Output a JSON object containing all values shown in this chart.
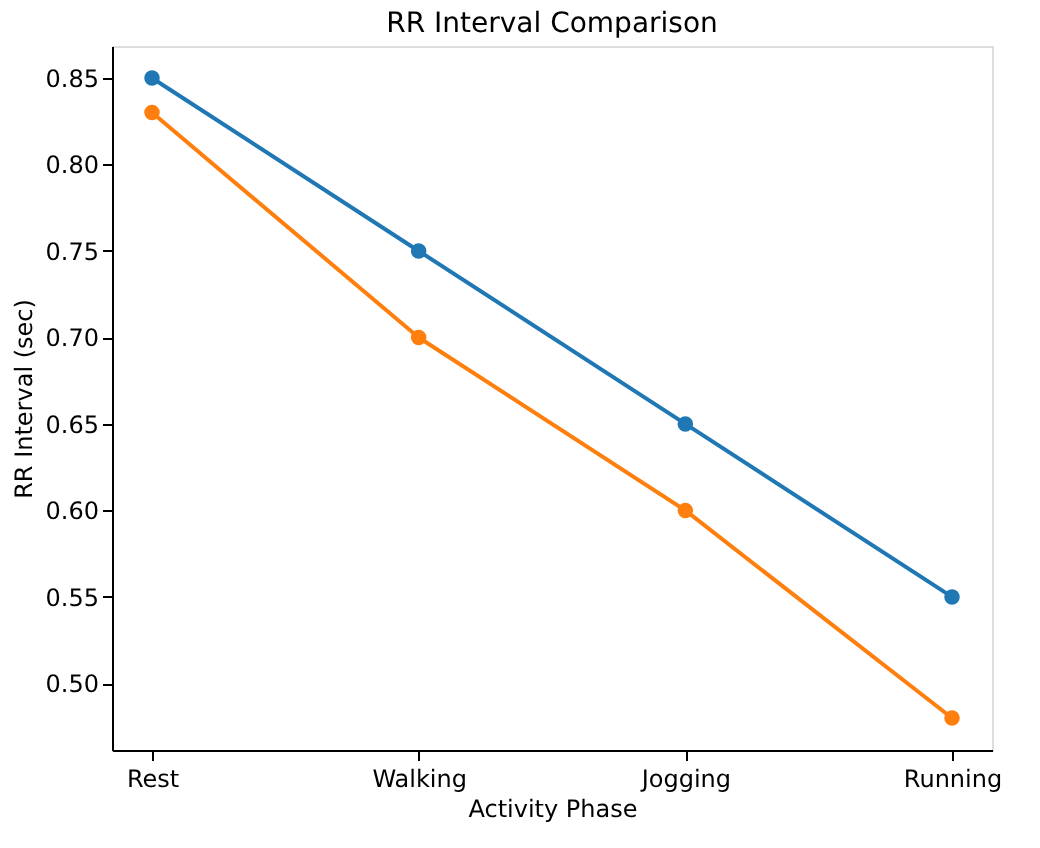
{
  "chart_data": {
    "type": "line",
    "title": "RR Interval Comparison",
    "xlabel": "Activity Phase",
    "ylabel": "RR Interval (sec)",
    "categories": [
      "Rest",
      "Walking",
      "Jogging",
      "Running"
    ],
    "series": [
      {
        "color": "#1f77b4",
        "values": [
          0.85,
          0.75,
          0.65,
          0.55
        ]
      },
      {
        "color": "#ff7f0e",
        "values": [
          0.83,
          0.7,
          0.6,
          0.48
        ]
      }
    ],
    "ylim": [
      0.4615,
      0.8685
    ],
    "yticks": [
      {
        "value": 0.5,
        "label": "0.50"
      },
      0.55,
      {
        "value": 0.6,
        "label": "0.60"
      },
      0.65,
      {
        "value": 0.7,
        "label": "0.70"
      },
      0.75,
      {
        "value": 0.8,
        "label": "0.80"
      },
      0.85
    ],
    "marker": "circle",
    "line_style": "solid",
    "grid": false,
    "legend": false
  }
}
